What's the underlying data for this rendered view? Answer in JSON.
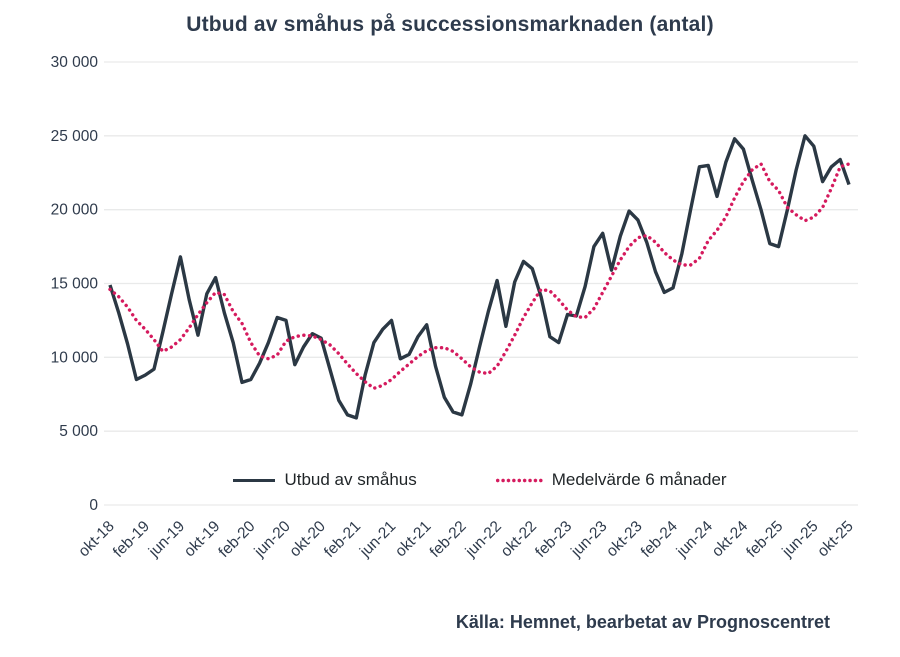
{
  "title": "Utbud av småhus på successionsmarknaden (antal)",
  "source": "Källa: Hemnet, bearbetat av Prognoscentret",
  "legend": {
    "series1_label": "Utbud av småhus",
    "series2_label": "Medelvärde 6 månader"
  },
  "colors": {
    "primary_line": "#2b3844",
    "secondary_line": "#d51b5e",
    "grid": "#e9eaea",
    "axis_text": "#2f3b4c"
  },
  "chart_data": {
    "type": "line",
    "title": "Utbud av småhus på successionsmarknaden (antal)",
    "xlabel": "",
    "ylabel": "",
    "ylim": [
      0,
      30000
    ],
    "grid": "horizontal",
    "legend_position": "bottom-center-inside",
    "y_ticks": [
      0,
      5000,
      10000,
      15000,
      20000,
      25000,
      30000
    ],
    "y_tick_labels": [
      "0",
      "5 000",
      "10 000",
      "15 000",
      "20 000",
      "25 000",
      "30 000"
    ],
    "x_tick_every": 4,
    "n_points": 85,
    "x_tick_labels": [
      "okt-18",
      "feb-19",
      "jun-19",
      "okt-19",
      "feb-20",
      "jun-20",
      "okt-20",
      "feb-21",
      "jun-21",
      "okt-21",
      "feb-22",
      "jun-22",
      "okt-22",
      "feb-23",
      "jun-23",
      "okt-23",
      "feb-24",
      "jun-24",
      "okt-24",
      "feb-25",
      "jun-25",
      "okt-25"
    ],
    "series": [
      {
        "name": "Utbud av småhus",
        "style": "solid",
        "color": "#2b3844",
        "values": [
          14900,
          13000,
          10900,
          8500,
          8800,
          9200,
          11700,
          14300,
          16800,
          13900,
          11500,
          14300,
          15400,
          13000,
          11000,
          8300,
          8500,
          9600,
          11000,
          12700,
          12500,
          9500,
          10700,
          11600,
          11300,
          9200,
          7100,
          6100,
          5900,
          8800,
          11000,
          11900,
          12500,
          9900,
          10200,
          11400,
          12200,
          9400,
          7300,
          6300,
          6100,
          8200,
          10700,
          13100,
          15200,
          12100,
          15100,
          16500,
          16000,
          14100,
          11400,
          11000,
          12900,
          12800,
          14800,
          17500,
          18400,
          15900,
          18200,
          19900,
          19300,
          17800,
          15800,
          14400,
          14700,
          17000,
          20000,
          22900,
          23000,
          20900,
          23200,
          24800,
          24100,
          22000,
          20000,
          17700,
          17500,
          20000,
          22700,
          25000,
          24300,
          21900,
          22900,
          23400,
          21700
        ]
      },
      {
        "name": "Medelvärde 6 månader",
        "style": "dotted",
        "color": "#d51b5e",
        "values": [
          14600,
          14100,
          13400,
          12500,
          11900,
          11200,
          10400,
          10700,
          11200,
          12000,
          12900,
          13700,
          14400,
          14250,
          13100,
          12300,
          11000,
          10100,
          9900,
          10150,
          11100,
          11400,
          11500,
          11450,
          11200,
          10850,
          10250,
          9550,
          8900,
          8350,
          7900,
          8100,
          8500,
          9050,
          9550,
          10050,
          10450,
          10650,
          10650,
          10400,
          9900,
          9350,
          9000,
          8900,
          9400,
          10400,
          11500,
          12700,
          13700,
          14600,
          14500,
          13900,
          13200,
          12750,
          12700,
          13300,
          14400,
          15500,
          16600,
          17500,
          18100,
          18250,
          17800,
          17100,
          16600,
          16250,
          16250,
          16700,
          17900,
          18600,
          19500,
          20800,
          21900,
          22700,
          23100,
          21900,
          21300,
          20150,
          19650,
          19250,
          19500,
          20150,
          21450,
          22900,
          23100
        ]
      }
    ]
  }
}
